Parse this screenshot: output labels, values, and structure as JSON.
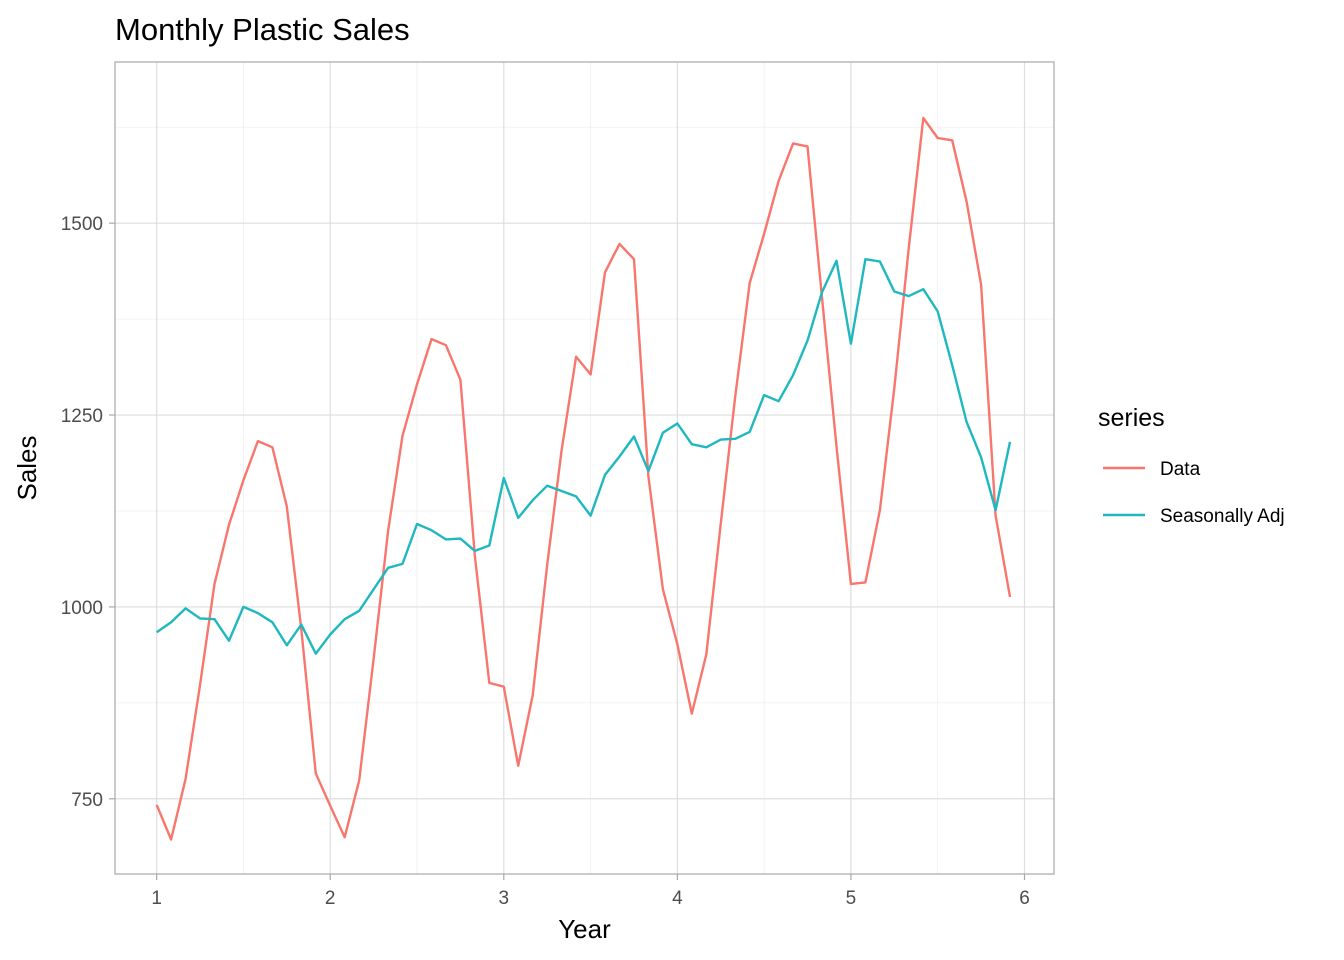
{
  "chart_data": {
    "type": "line",
    "title": "Monthly Plastic Sales",
    "xlabel": "Year",
    "ylabel": "Sales",
    "xlim": [
      0.76,
      6.17
    ],
    "ylim": [
      652,
      1710
    ],
    "x_ticks": [
      1,
      2,
      3,
      4,
      5,
      6
    ],
    "y_ticks": [
      750,
      1000,
      1250,
      1500
    ],
    "grid": true,
    "legend": {
      "title": "series",
      "position": "right"
    },
    "x": [
      1.0,
      1.0833,
      1.1667,
      1.25,
      1.3333,
      1.4167,
      1.5,
      1.5833,
      1.6667,
      1.75,
      1.8333,
      1.9167,
      2.0,
      2.0833,
      2.1667,
      2.25,
      2.3333,
      2.4167,
      2.5,
      2.5833,
      2.6667,
      2.75,
      2.8333,
      2.9167,
      3.0,
      3.0833,
      3.1667,
      3.25,
      3.3333,
      3.4167,
      3.5,
      3.5833,
      3.6667,
      3.75,
      3.8333,
      3.9167,
      4.0,
      4.0833,
      4.1667,
      4.25,
      4.3333,
      4.4167,
      4.5,
      4.5833,
      4.6667,
      4.75,
      4.8333,
      4.9167,
      5.0,
      5.0833,
      5.1667,
      5.25,
      5.3333,
      5.4167,
      5.5,
      5.5833,
      5.6667,
      5.75,
      5.8333,
      5.9167
    ],
    "series": [
      {
        "name": "Data",
        "color": "#f8766d",
        "values": [
          742,
          697,
          776,
          898,
          1030,
          1107,
          1165,
          1216,
          1208,
          1131,
          971,
          783,
          741,
          700,
          774,
          932,
          1099,
          1223,
          1290,
          1349,
          1341,
          1296,
          1066,
          901,
          896,
          793,
          885,
          1055,
          1204,
          1326,
          1303,
          1436,
          1473,
          1453,
          1170,
          1023,
          951,
          861,
          938,
          1109,
          1274,
          1422,
          1486,
          1555,
          1604,
          1600,
          1403,
          1209,
          1030,
          1032,
          1126,
          1285,
          1468,
          1637,
          1611,
          1608,
          1528,
          1420,
          1119,
          1013
        ]
      },
      {
        "name": "Seasonally Adj",
        "color": "#1fb8c0",
        "values": [
          967,
          980,
          998,
          985,
          984,
          956,
          1000,
          992,
          980,
          950,
          977,
          939,
          964,
          984,
          995,
          1023,
          1051,
          1056,
          1108,
          1100,
          1088,
          1089,
          1073,
          1080,
          1168,
          1116,
          1139,
          1158,
          1151,
          1144,
          1119,
          1172,
          1196,
          1222,
          1177,
          1227,
          1239,
          1212,
          1208,
          1218,
          1219,
          1228,
          1276,
          1268,
          1302,
          1347,
          1410,
          1451,
          1343,
          1453,
          1450,
          1411,
          1405,
          1414,
          1385,
          1315,
          1241,
          1195,
          1126,
          1215
        ]
      }
    ]
  }
}
